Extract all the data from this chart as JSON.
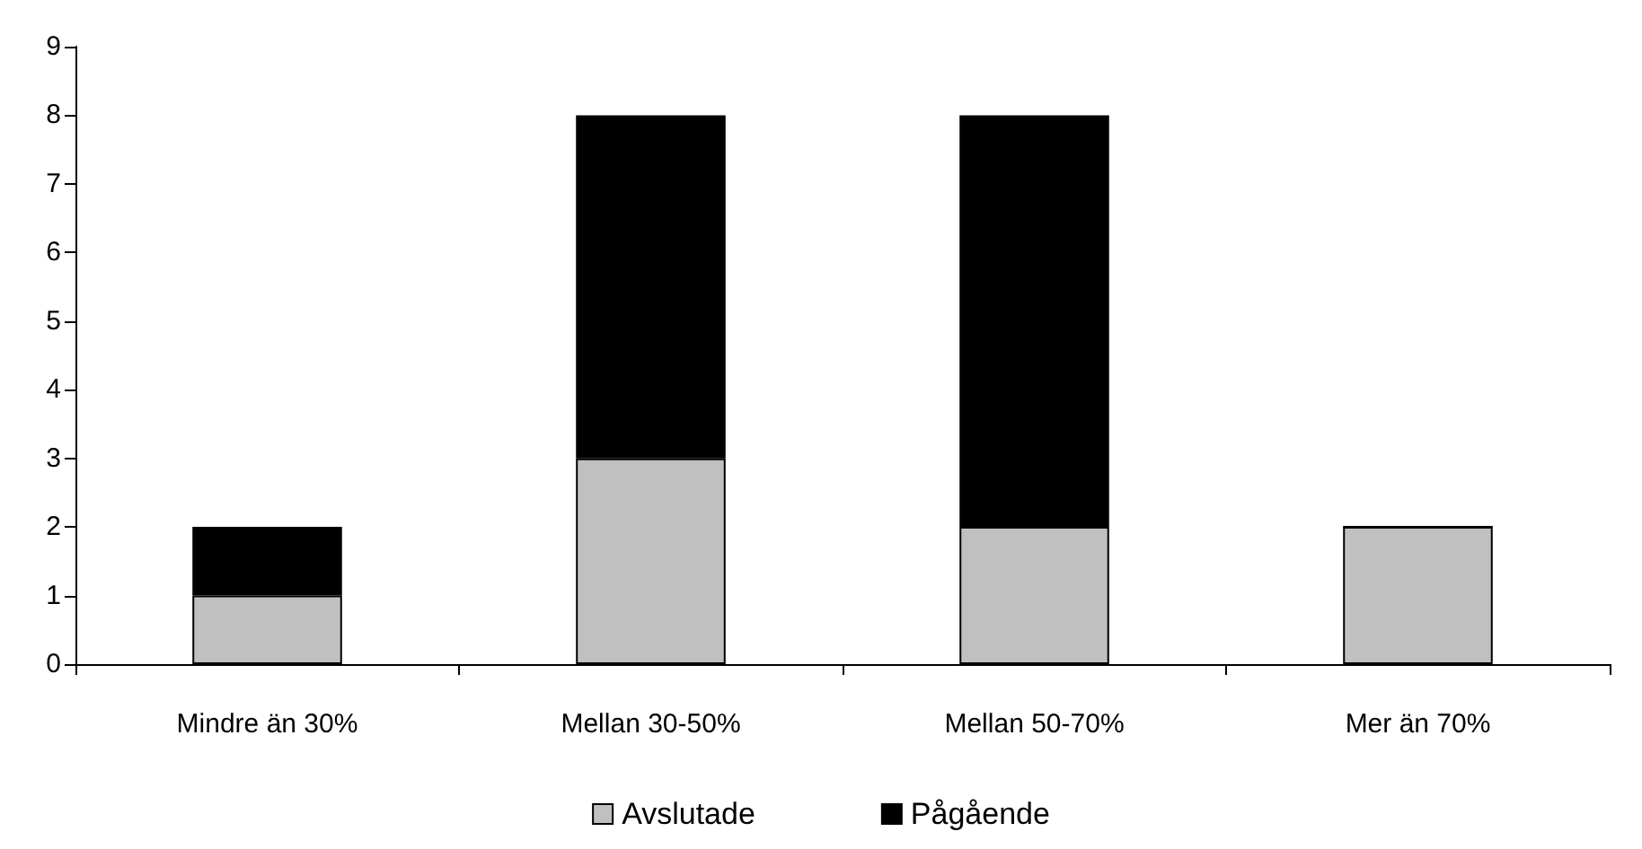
{
  "chart_data": {
    "type": "bar",
    "stacked": true,
    "categories": [
      "Mindre än 30%",
      "Mellan 30-50%",
      "Mellan 50-70%",
      "Mer än 70%"
    ],
    "series": [
      {
        "name": "Avslutade",
        "color": "#c0c0c0",
        "values": [
          1,
          3,
          2,
          2
        ]
      },
      {
        "name": "Pågående",
        "color": "#000000",
        "values": [
          1,
          5,
          6,
          0
        ]
      }
    ],
    "ylim": [
      0,
      9
    ],
    "yticks": [
      0,
      1,
      2,
      3,
      4,
      5,
      6,
      7,
      8,
      9
    ],
    "grid": false,
    "legend": "bottom"
  }
}
